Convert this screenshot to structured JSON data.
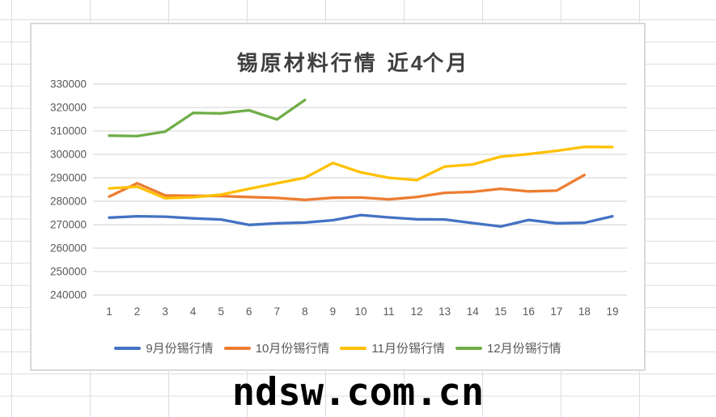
{
  "chart_data": {
    "type": "line",
    "title": "锡原材料行情 近4个月",
    "title_parts": {
      "pre": "锡原材料行情 近",
      "num": "4",
      "post": "个月"
    },
    "xticks": [
      1,
      2,
      3,
      4,
      5,
      6,
      7,
      8,
      9,
      10,
      11,
      12,
      13,
      14,
      15,
      16,
      17,
      18,
      19
    ],
    "ylim": [
      240000,
      330000
    ],
    "yticks": [
      240000,
      250000,
      260000,
      270000,
      280000,
      290000,
      300000,
      310000,
      320000,
      330000
    ],
    "grid": "horizontal",
    "legend_position": "bottom",
    "series": [
      {
        "name": "9月份锡行情",
        "color": "#4472C4",
        "values": [
          273000,
          273600,
          273400,
          272700,
          272200,
          269900,
          270600,
          270900,
          271900,
          274100,
          273100,
          272300,
          272200,
          270700,
          269200,
          272000,
          270600,
          270800,
          273600
        ]
      },
      {
        "name": "10月份锡行情",
        "color": "#ED7D31",
        "values": [
          282000,
          287700,
          282500,
          282300,
          282200,
          281800,
          281400,
          280600,
          281500,
          281600,
          280800,
          281800,
          283600,
          284000,
          285300,
          284200,
          284500,
          291200
        ]
      },
      {
        "name": "11月份锡行情",
        "color": "#FFC000",
        "values": [
          285500,
          286200,
          281300,
          281700,
          282800,
          285300,
          287700,
          290000,
          296300,
          292300,
          290000,
          289000,
          294800,
          295700,
          299000,
          300100,
          301500,
          303200,
          303100
        ]
      },
      {
        "name": "12月份锡行情",
        "color": "#70AD47",
        "values": [
          308000,
          307800,
          309700,
          317700,
          317500,
          318800,
          314900,
          323200
        ]
      }
    ]
  },
  "watermark": {
    "text": "ndsw.com.cn"
  },
  "colors": {
    "plot_gridline": "#D9D9D9",
    "axis_text": "#595959",
    "chart_border": "#D9D9D9",
    "title_text": "#404040",
    "sheet_gridline": "#D9DDE2"
  }
}
